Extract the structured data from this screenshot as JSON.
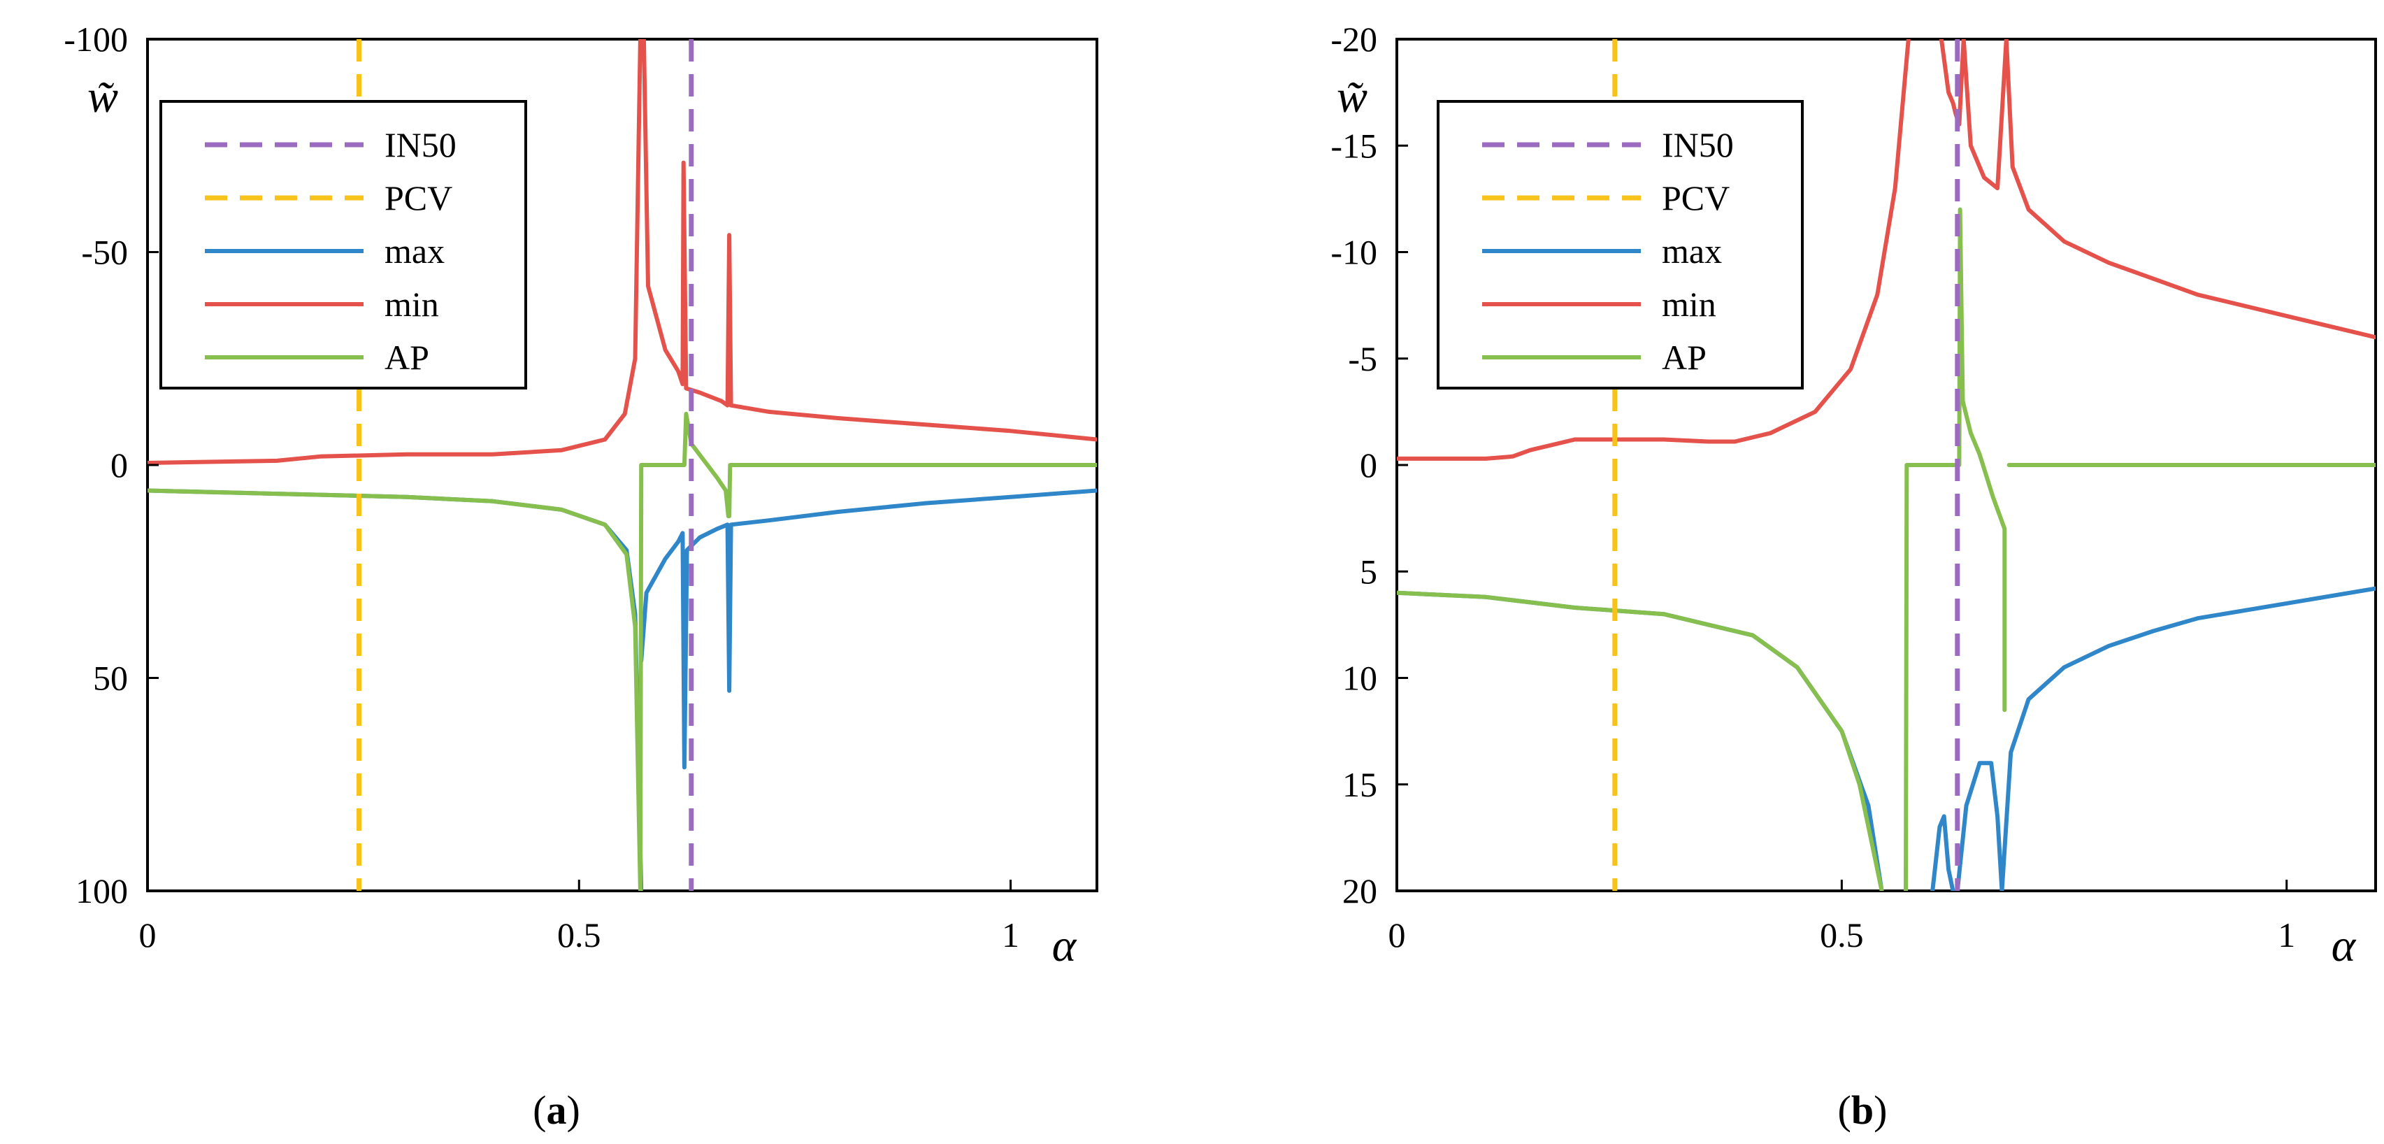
{
  "figure": {
    "panels": [
      {
        "label_open": "(",
        "label_letter": "a",
        "label_close": ")"
      },
      {
        "label_open": "(",
        "label_letter": "b",
        "label_close": ")"
      }
    ]
  },
  "colors": {
    "IN50": "#9b6bbf",
    "PCV": "#f7c21a",
    "max": "#2f86c8",
    "min": "#e5524b",
    "AP": "#87bf4e"
  },
  "chart_data": [
    {
      "type": "line",
      "panel": "a",
      "title": "",
      "xlabel": "α",
      "ylabel": "w̃",
      "xlim": [
        0,
        1.1
      ],
      "ylim": [
        -100,
        100
      ],
      "y_axis_inverted": true,
      "xticks": [
        0,
        0.5,
        1
      ],
      "xtick_labels": [
        "0",
        "0.5",
        "1"
      ],
      "yticks": [
        -100,
        -50,
        0,
        50,
        100
      ],
      "ytick_labels": [
        "-100",
        "-50",
        "0",
        "50",
        "100"
      ],
      "legend": [
        "IN50",
        "PCV",
        "max",
        "min",
        "AP"
      ],
      "legend_position": "top-left",
      "vlines": [
        {
          "name": "IN50",
          "x": 0.63,
          "style": "dashed"
        },
        {
          "name": "PCV",
          "x": 0.245,
          "style": "dashed"
        }
      ],
      "series": [
        {
          "name": "max",
          "points": [
            [
              0,
              6
            ],
            [
              0.2,
              7
            ],
            [
              0.3,
              7.5
            ],
            [
              0.4,
              8.5
            ],
            [
              0.48,
              10.5
            ],
            [
              0.53,
              14
            ],
            [
              0.555,
              20
            ],
            [
              0.565,
              35
            ],
            [
              0.572,
              100
            ],
            null,
            [
              0.572,
              46
            ],
            [
              0.578,
              30
            ],
            [
              0.6,
              22
            ],
            [
              0.615,
              18
            ],
            [
              0.62,
              16
            ],
            [
              0.622,
              71
            ],
            null,
            [
              0.622,
              71
            ],
            [
              0.625,
              20
            ],
            [
              0.64,
              17
            ],
            [
              0.66,
              15
            ],
            [
              0.672,
              14
            ],
            [
              0.674,
              53
            ],
            null,
            [
              0.674,
              53
            ],
            [
              0.676,
              14
            ],
            [
              0.72,
              13
            ],
            [
              0.8,
              11
            ],
            [
              0.9,
              9
            ],
            [
              1.0,
              7.5
            ],
            [
              1.1,
              6
            ]
          ]
        },
        {
          "name": "min",
          "points": [
            [
              0,
              -0.5
            ],
            [
              0.15,
              -1
            ],
            [
              0.2,
              -2
            ],
            [
              0.3,
              -2.5
            ],
            [
              0.4,
              -2.5
            ],
            [
              0.48,
              -3.5
            ],
            [
              0.53,
              -6
            ],
            [
              0.553,
              -12
            ],
            [
              0.565,
              -25
            ],
            [
              0.571,
              -100
            ],
            null,
            [
              0.575,
              -100
            ],
            [
              0.58,
              -42
            ],
            [
              0.6,
              -27
            ],
            [
              0.615,
              -22
            ],
            [
              0.62,
              -19
            ],
            [
              0.621,
              -71
            ],
            null,
            [
              0.621,
              -71
            ],
            [
              0.624,
              -18
            ],
            [
              0.64,
              -17
            ],
            [
              0.665,
              -15
            ],
            [
              0.672,
              -14
            ],
            [
              0.674,
              -54
            ],
            null,
            [
              0.674,
              -54
            ],
            [
              0.676,
              -14
            ],
            [
              0.72,
              -12.5
            ],
            [
              0.8,
              -11
            ],
            [
              0.9,
              -9.5
            ],
            [
              1.0,
              -8
            ],
            [
              1.1,
              -6
            ]
          ]
        },
        {
          "name": "AP",
          "points": [
            [
              0,
              6
            ],
            [
              0.2,
              7
            ],
            [
              0.3,
              7.5
            ],
            [
              0.4,
              8.5
            ],
            [
              0.48,
              10.5
            ],
            [
              0.53,
              14
            ],
            [
              0.555,
              21
            ],
            [
              0.565,
              38
            ],
            [
              0.571,
              100
            ],
            null,
            [
              0.571,
              100
            ],
            [
              0.572,
              0
            ],
            [
              0.622,
              0
            ],
            [
              0.624,
              -12
            ],
            [
              0.63,
              -5
            ],
            [
              0.645,
              -1
            ],
            [
              0.66,
              3
            ],
            [
              0.67,
              6
            ],
            [
              0.673,
              12
            ],
            [
              0.674,
              12
            ],
            [
              0.675,
              0
            ],
            [
              1.1,
              0
            ]
          ]
        }
      ]
    },
    {
      "type": "line",
      "panel": "b",
      "title": "",
      "xlabel": "α",
      "ylabel": "w̃",
      "xlim": [
        0,
        1.1
      ],
      "ylim": [
        -20,
        20
      ],
      "y_axis_inverted": true,
      "xticks": [
        0,
        0.5,
        1
      ],
      "xtick_labels": [
        "0",
        "0.5",
        "1"
      ],
      "yticks": [
        -20,
        -15,
        -10,
        -5,
        0,
        5,
        10,
        15,
        20
      ],
      "ytick_labels": [
        "-20",
        "-15",
        "-10",
        "-5",
        "0",
        "5",
        "10",
        "15",
        "20"
      ],
      "legend": [
        "IN50",
        "PCV",
        "max",
        "min",
        "AP"
      ],
      "legend_position": "top-left",
      "vlines": [
        {
          "name": "IN50",
          "x": 0.63,
          "style": "dashed"
        },
        {
          "name": "PCV",
          "x": 0.245,
          "style": "dashed"
        }
      ],
      "series": [
        {
          "name": "max",
          "points": [
            [
              0,
              6
            ],
            [
              0.1,
              6.2
            ],
            [
              0.2,
              6.7
            ],
            [
              0.3,
              7
            ],
            [
              0.4,
              8
            ],
            [
              0.45,
              9.5
            ],
            [
              0.5,
              12.5
            ],
            [
              0.53,
              16
            ],
            [
              0.545,
              20
            ],
            null,
            [
              0.602,
              20
            ],
            [
              0.61,
              17
            ],
            [
              0.615,
              16.5
            ],
            [
              0.62,
              19
            ],
            [
              0.625,
              20
            ],
            null,
            [
              0.63,
              20
            ],
            [
              0.64,
              16
            ],
            [
              0.655,
              14
            ],
            [
              0.668,
              14
            ],
            [
              0.675,
              16.5
            ],
            [
              0.68,
              20
            ],
            null,
            [
              0.68,
              20
            ],
            [
              0.69,
              13.5
            ],
            [
              0.71,
              11
            ],
            [
              0.75,
              9.5
            ],
            [
              0.8,
              8.5
            ],
            [
              0.85,
              7.8
            ],
            [
              0.9,
              7.2
            ],
            [
              1.0,
              6.5
            ],
            [
              1.1,
              5.8
            ]
          ]
        },
        {
          "name": "min",
          "points": [
            [
              0,
              -0.3
            ],
            [
              0.1,
              -0.3
            ],
            [
              0.13,
              -0.4
            ],
            [
              0.15,
              -0.7
            ],
            [
              0.2,
              -1.2
            ],
            [
              0.3,
              -1.2
            ],
            [
              0.35,
              -1.1
            ],
            [
              0.38,
              -1.1
            ],
            [
              0.42,
              -1.5
            ],
            [
              0.47,
              -2.5
            ],
            [
              0.51,
              -4.5
            ],
            [
              0.54,
              -8
            ],
            [
              0.56,
              -13
            ],
            [
              0.575,
              -20
            ],
            null,
            [
              0.612,
              -20
            ],
            [
              0.62,
              -17.5
            ],
            [
              0.625,
              -17
            ],
            [
              0.628,
              -16.5
            ],
            [
              0.632,
              -16
            ],
            [
              0.637,
              -20
            ],
            null,
            [
              0.637,
              -20
            ],
            [
              0.645,
              -15
            ],
            [
              0.66,
              -13.5
            ],
            [
              0.675,
              -13
            ],
            [
              0.685,
              -20
            ],
            null,
            [
              0.685,
              -20
            ],
            [
              0.692,
              -14
            ],
            [
              0.71,
              -12
            ],
            [
              0.75,
              -10.5
            ],
            [
              0.8,
              -9.5
            ],
            [
              0.9,
              -8
            ],
            [
              1.0,
              -7
            ],
            [
              1.1,
              -6
            ]
          ]
        },
        {
          "name": "AP",
          "points": [
            [
              0,
              6
            ],
            [
              0.1,
              6.2
            ],
            [
              0.2,
              6.7
            ],
            [
              0.3,
              7
            ],
            [
              0.4,
              8
            ],
            [
              0.45,
              9.5
            ],
            [
              0.5,
              12.5
            ],
            [
              0.52,
              15
            ],
            [
              0.54,
              19
            ],
            [
              0.545,
              20
            ],
            null,
            [
              0.572,
              20
            ],
            [
              0.573,
              0
            ],
            [
              0.632,
              0
            ],
            [
              0.633,
              -12
            ],
            [
              0.636,
              -3
            ],
            [
              0.645,
              -1.5
            ],
            [
              0.655,
              -0.5
            ],
            [
              0.67,
              1.5
            ],
            [
              0.683,
              3
            ],
            [
              0.683,
              11.5
            ],
            null,
            [
              0.688,
              0
            ],
            [
              1.1,
              0
            ]
          ]
        }
      ]
    }
  ]
}
